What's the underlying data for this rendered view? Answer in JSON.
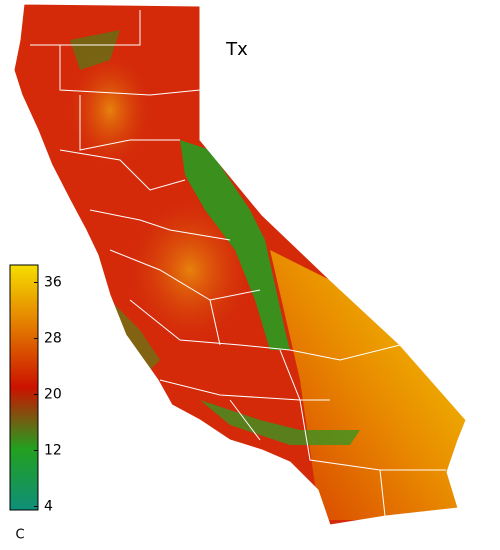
{
  "map": {
    "title": "Tx",
    "colorbar": {
      "unit": "C",
      "lim": [
        3.5,
        38.5
      ],
      "ticks": [
        36,
        28,
        20,
        12,
        4
      ],
      "colors": [
        "#0f8f78",
        "#23a020",
        "#cc1200",
        "#e37a00",
        "#f5de00"
      ]
    }
  }
}
